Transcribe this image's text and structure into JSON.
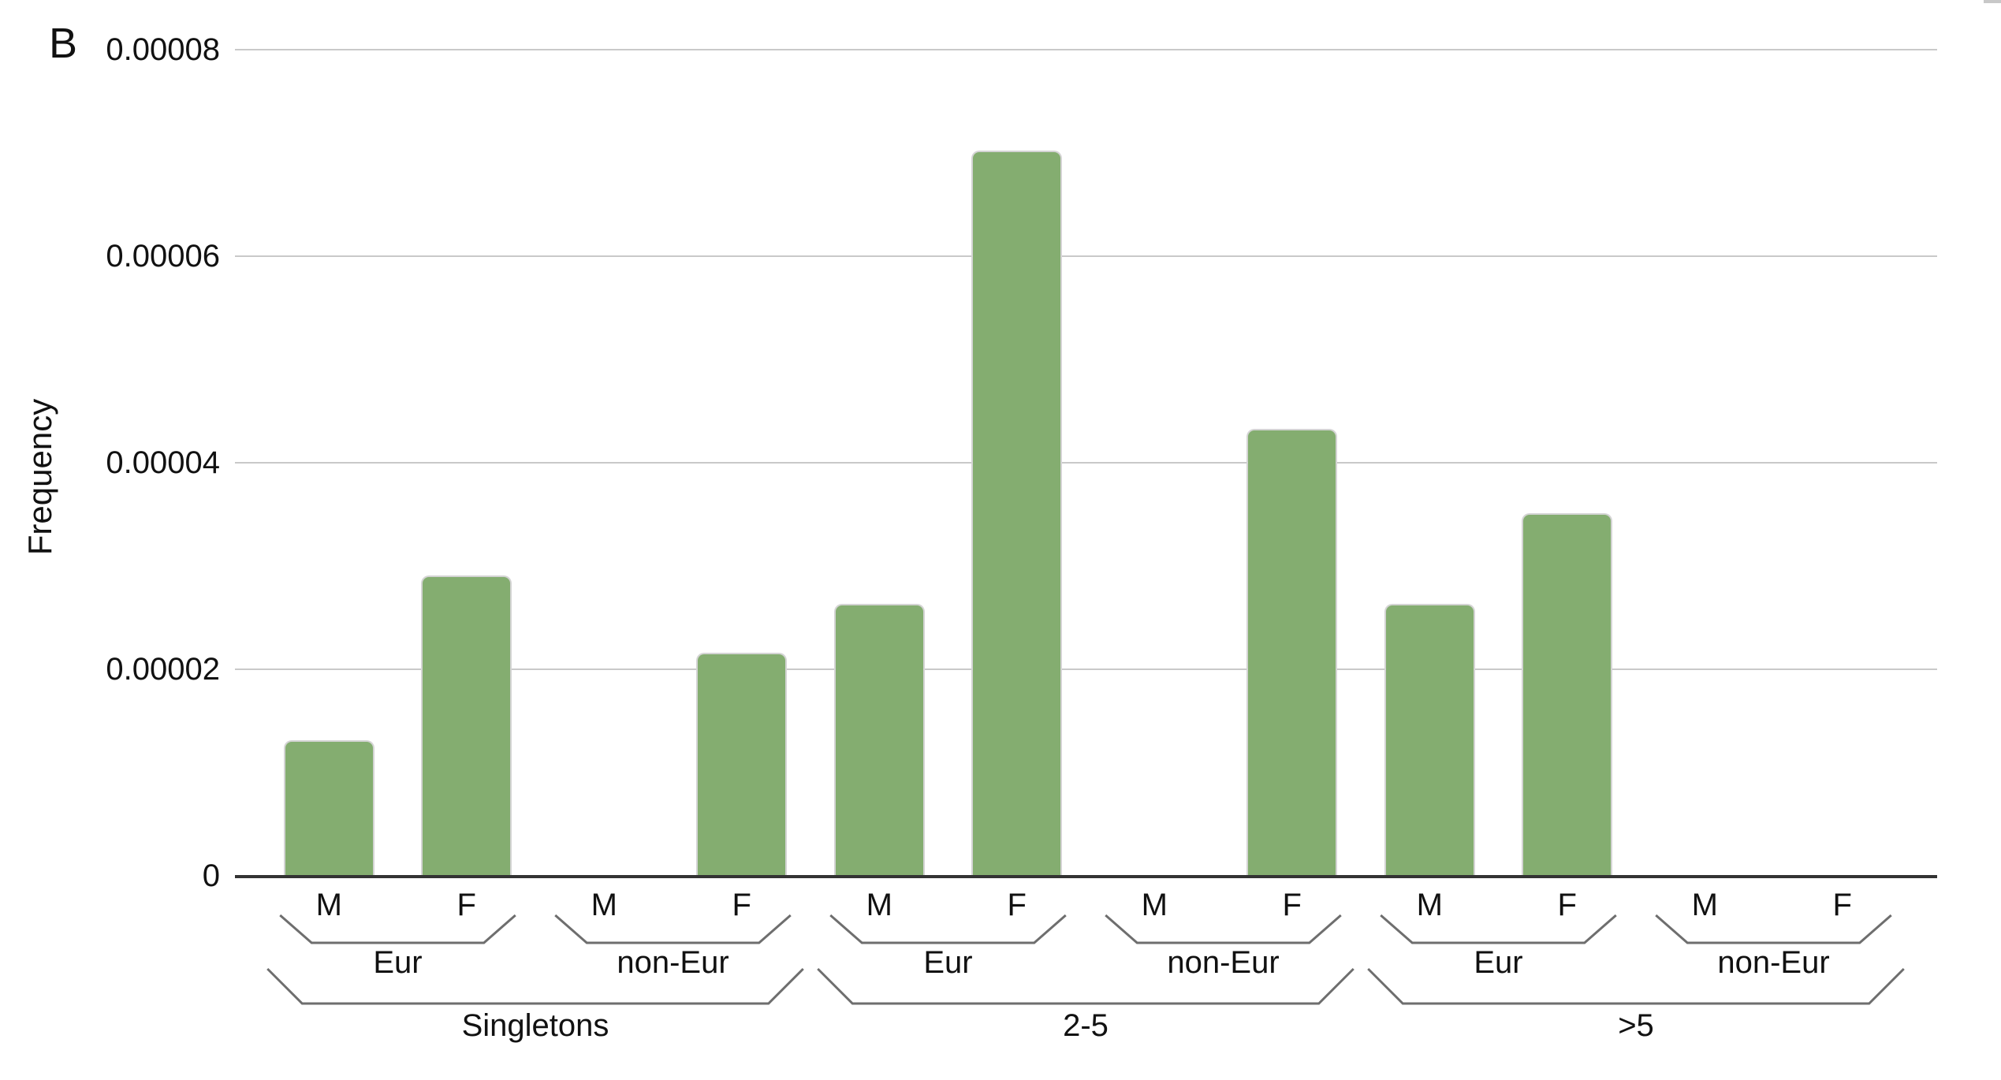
{
  "panel_label": "B",
  "colors": {
    "bar_fill": "#84ad70",
    "bar_outline": "#d4d4d4",
    "gridline": "#c9c9c9",
    "axis_line": "#333333",
    "bracket_line": "#6e6e6e",
    "text": "#111111",
    "screen_artifact": "#c8c8c8"
  },
  "chart_data": {
    "type": "bar",
    "title": "",
    "xlabel": "",
    "ylabel": "Frequency",
    "ylim": [
      0,
      8e-05
    ],
    "yticks": [
      0,
      2e-05,
      4e-05,
      6e-05,
      8e-05
    ],
    "ytick_labels": [
      "0",
      "0.00002",
      "0.00004",
      "0.00006",
      "0.00008"
    ],
    "grid": true,
    "legend": null,
    "bar_color": "#84ad70",
    "groups": [
      {
        "label": "Singletons",
        "subgroups": [
          {
            "label": "Eur",
            "bars": [
              {
                "label": "M",
                "value": 1.31e-05
              },
              {
                "label": "F",
                "value": 2.91e-05
              }
            ]
          },
          {
            "label": "non-Eur",
            "bars": [
              {
                "label": "M",
                "value": 0
              },
              {
                "label": "F",
                "value": 2.16e-05
              }
            ]
          }
        ]
      },
      {
        "label": "2-5",
        "subgroups": [
          {
            "label": "Eur",
            "bars": [
              {
                "label": "M",
                "value": 2.63e-05
              },
              {
                "label": "F",
                "value": 7.02e-05
              }
            ]
          },
          {
            "label": "non-Eur",
            "bars": [
              {
                "label": "M",
                "value": 0
              },
              {
                "label": "F",
                "value": 4.33e-05
              }
            ]
          }
        ]
      },
      {
        "label": ">5",
        "subgroups": [
          {
            "label": "Eur",
            "bars": [
              {
                "label": "M",
                "value": 2.63e-05
              },
              {
                "label": "F",
                "value": 3.51e-05
              }
            ]
          },
          {
            "label": "non-Eur",
            "bars": [
              {
                "label": "M",
                "value": 0
              },
              {
                "label": "F",
                "value": 0
              }
            ]
          }
        ]
      }
    ]
  }
}
